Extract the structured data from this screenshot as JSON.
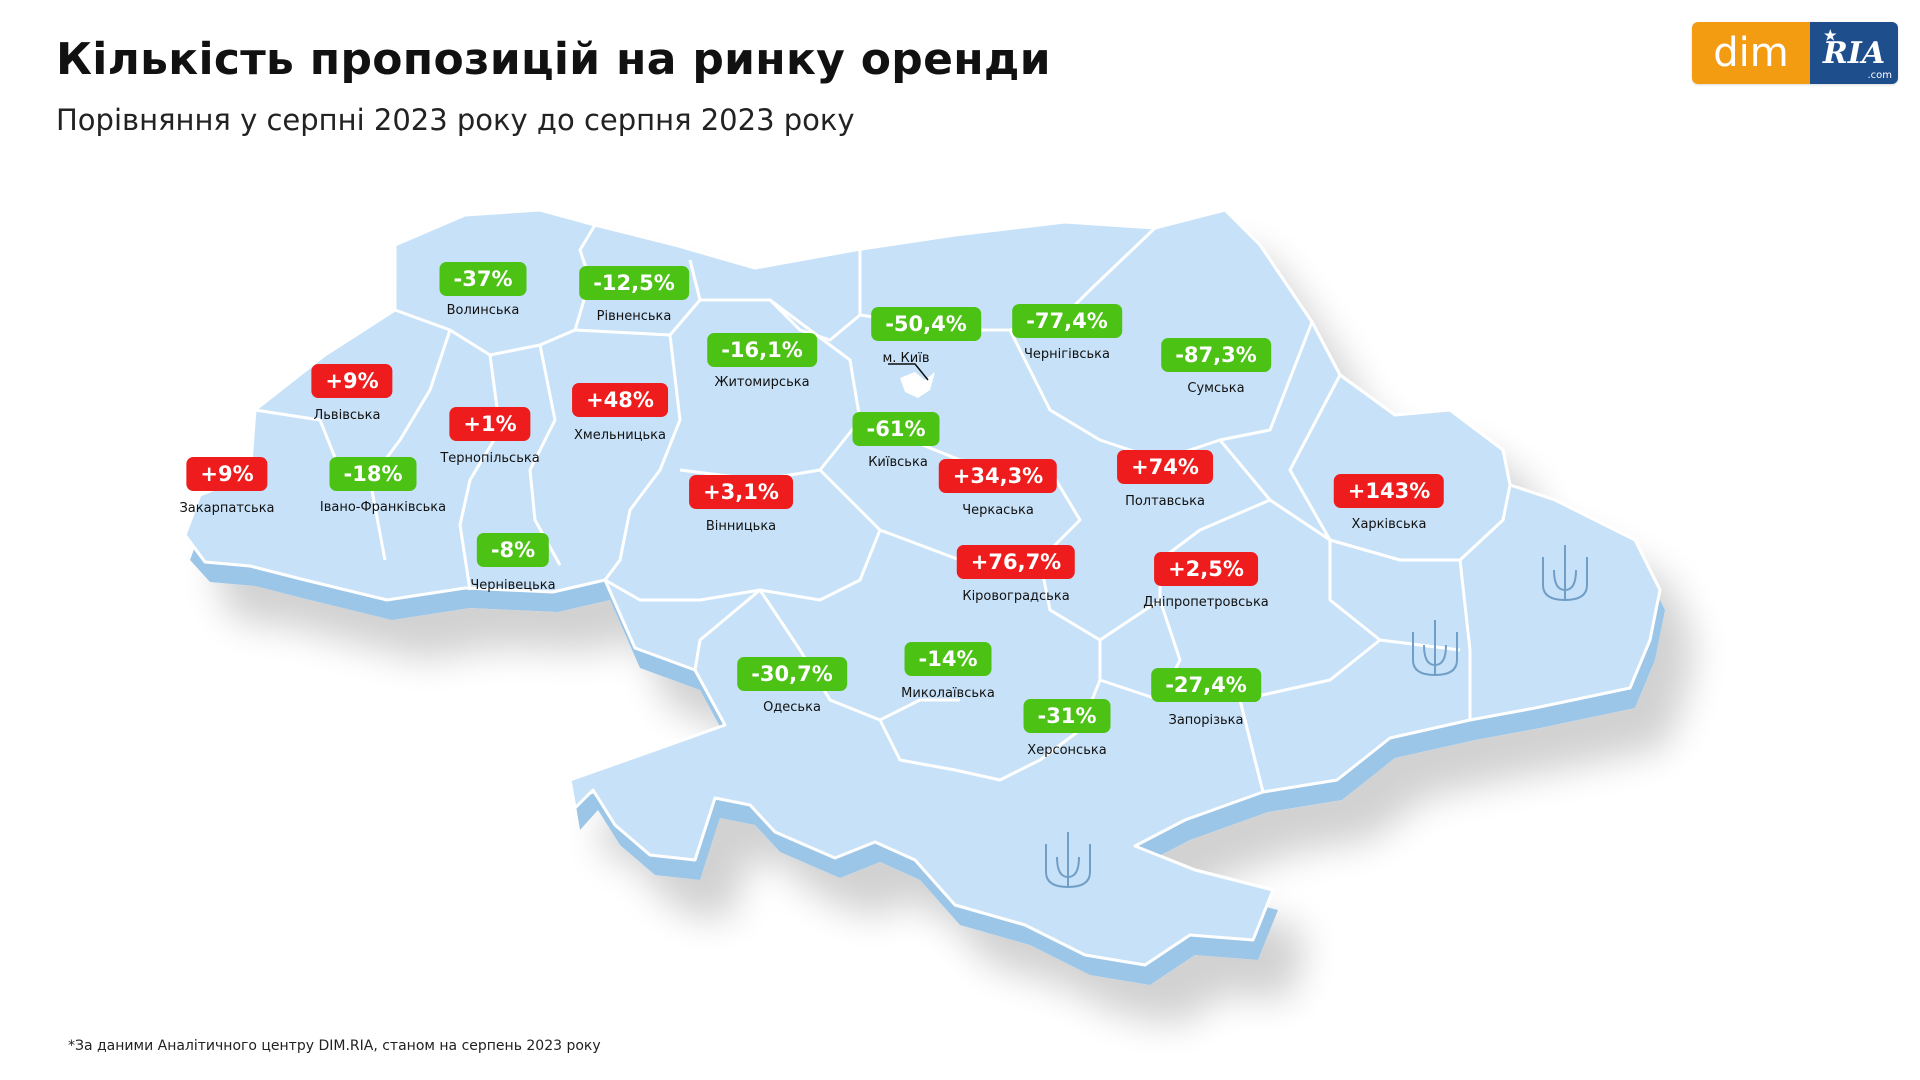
{
  "header": {
    "title": "Кількість пропозицій на ринку оренди",
    "subtitle": "Порівняння у серпні 2023 року до серпня 2023 року"
  },
  "logo": {
    "left": "dim",
    "right": "RIA",
    "suffix": ".com"
  },
  "colors": {
    "increase": "#ee1c1c",
    "decrease": "#4cc214",
    "map_fill": "#c7e2f8",
    "map_side": "#9cc6e8"
  },
  "regions": [
    {
      "name": "Волинська",
      "value": "-37%",
      "trend": "down"
    },
    {
      "name": "Рівненська",
      "value": "-12,5%",
      "trend": "down"
    },
    {
      "name": "Житомирська",
      "value": "-16,1%",
      "trend": "down"
    },
    {
      "name": "м. Київ",
      "value": "-50,4%",
      "trend": "down"
    },
    {
      "name": "Чернігівська",
      "value": "-77,4%",
      "trend": "down"
    },
    {
      "name": "Сумська",
      "value": "-87,3%",
      "trend": "down"
    },
    {
      "name": "Львівська",
      "value": "+9%",
      "trend": "up"
    },
    {
      "name": "Тернопільська",
      "value": "+1%",
      "trend": "up"
    },
    {
      "name": "Хмельницька",
      "value": "+48%",
      "trend": "up"
    },
    {
      "name": "Київська",
      "value": "-61%",
      "trend": "down"
    },
    {
      "name": "Закарпатська",
      "value": "+9%",
      "trend": "up"
    },
    {
      "name": "Івано-Франківська",
      "value": "-18%",
      "trend": "down"
    },
    {
      "name": "Вінницька",
      "value": "+3,1%",
      "trend": "up"
    },
    {
      "name": "Черкаська",
      "value": "+34,3%",
      "trend": "up"
    },
    {
      "name": "Полтавська",
      "value": "+74%",
      "trend": "up"
    },
    {
      "name": "Харківська",
      "value": "+143%",
      "trend": "up"
    },
    {
      "name": "Чернівецька",
      "value": "-8%",
      "trend": "down"
    },
    {
      "name": "Кіровоградська",
      "value": "+76,7%",
      "trend": "up"
    },
    {
      "name": "Дніпропетровська",
      "value": "+2,5%",
      "trend": "up"
    },
    {
      "name": "Одеська",
      "value": "-30,7%",
      "trend": "down"
    },
    {
      "name": "Миколаївська",
      "value": "-14%",
      "trend": "down"
    },
    {
      "name": "Херсонська",
      "value": "-31%",
      "trend": "down"
    },
    {
      "name": "Запорізька",
      "value": "-27,4%",
      "trend": "down"
    }
  ],
  "footnote": "*За даними Аналітичного центру DIM.RIA, станом на серпень 2023 року"
}
